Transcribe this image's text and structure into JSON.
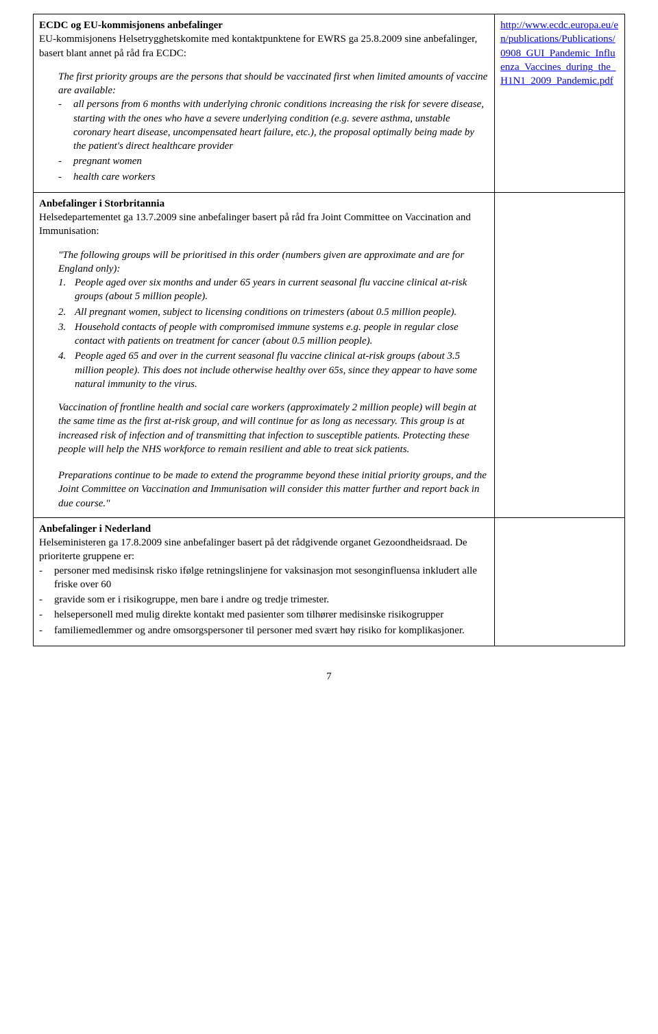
{
  "cell1": {
    "title": "ECDC og EU-kommisjonens anbefalinger",
    "intro1": "EU-kommisjonens Helsetrygghetskomite med kontaktpunktene for EWRS ga 25.8.2009 sine anbefalinger, basert blant annet på råd fra ECDC:",
    "lead": "The first priority groups are the persons that should be vaccinated first when limited amounts of vaccine are available:",
    "b1": "all persons from 6 months with underlying chronic conditions increasing the risk for severe disease, starting with the ones who have a severe underlying condition (e.g. severe asthma, unstable coronary heart disease, uncompensated heart failure, etc.), the proposal optimally being made by the patient's direct healthcare provider",
    "b2": "pregnant women",
    "b3": "health care workers"
  },
  "link": {
    "text": "http://www.ecdc.europa.eu/en/publications/Publications/0908_GUI_Pandemic_Influenza_Vaccines_during_the_H1N1_2009_Pandemic.pdf"
  },
  "cell2": {
    "title": "Anbefalinger i Storbritannia",
    "intro": "Helsedepartementet ga 13.7.2009 sine anbefalinger basert på råd fra Joint Committee on Vaccination and Immunisation:",
    "lead": "\"The following groups will be prioritised in this order (numbers given are approximate and are for England only):",
    "n1": "People aged over six months and under 65 years in current seasonal flu vaccine clinical at-risk groups (about 5 million people).",
    "n2": "All pregnant women, subject to licensing conditions on trimesters (about 0.5 million people).",
    "n3": "Household contacts of people with compromised immune systems e.g. people in regular close contact with patients on treatment for cancer (about 0.5 million people).",
    "n4": "People aged 65 and over in the current seasonal flu vaccine clinical at-risk groups (about 3.5 million people). This does not include otherwise healthy over 65s, since they appear to have some natural immunity to the virus.",
    "para1": "Vaccination of frontline health and social care workers (approximately 2 million people) will begin at the same time as the first at-risk group, and will continue for as long as necessary. This group is at increased risk of infection and of transmitting that infection to susceptible patients. Protecting these people will help the NHS workforce to remain resilient and able to treat sick patients.",
    "para2": "Preparations continue to be made to extend the programme beyond these initial priority groups, and the Joint Committee on Vaccination and Immunisation will consider this matter further and report back in due course.\""
  },
  "cell3": {
    "title": "Anbefalinger i Nederland",
    "intro": "Helseministeren ga 17.8.2009 sine anbefalinger basert på det rådgivende organet Gezoondheidsraad. De prioriterte gruppene er:",
    "b1": "personer med medisinsk risko ifølge retningslinjene for vaksinasjon mot sesonginfluensa inkludert alle friske over 60",
    "b2": "gravide som er i risikogruppe, men bare i andre og tredje trimester.",
    "b3": "helsepersonell med mulig direkte kontakt med pasienter som tilhører medisinske risikogrupper",
    "b4": "familiemedlemmer og andre omsorgspersoner til personer med svært høy risiko for komplikasjoner."
  },
  "pagenum": "7"
}
